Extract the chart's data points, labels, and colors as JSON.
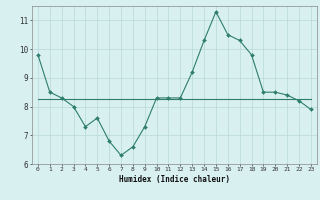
{
  "x": [
    0,
    1,
    2,
    3,
    4,
    5,
    6,
    7,
    8,
    9,
    10,
    11,
    12,
    13,
    14,
    15,
    16,
    17,
    18,
    19,
    20,
    21,
    22,
    23
  ],
  "y_curve": [
    9.8,
    8.5,
    8.3,
    8.0,
    7.3,
    7.6,
    6.8,
    6.3,
    6.6,
    7.3,
    8.3,
    8.3,
    8.3,
    9.2,
    10.3,
    11.3,
    10.5,
    10.3,
    9.8,
    8.5,
    8.5,
    8.4,
    8.2,
    7.9
  ],
  "y_flat": [
    8.25,
    8.25,
    8.25,
    8.25,
    8.25,
    8.25,
    8.25,
    8.25,
    8.25,
    8.25,
    8.25,
    8.25,
    8.25,
    8.25,
    8.25,
    8.25,
    8.25,
    8.25,
    8.25,
    8.25,
    8.25,
    8.25,
    8.25,
    8.25
  ],
  "line_color": "#2E7D6E",
  "bg_color": "#D9F0F0",
  "grid_color": "#B8D8D8",
  "xlabel": "Humidex (Indice chaleur)",
  "ylim": [
    6,
    11.5
  ],
  "xlim": [
    -0.5,
    23.5
  ],
  "yticks": [
    6,
    7,
    8,
    9,
    10,
    11
  ],
  "xticks": [
    0,
    1,
    2,
    3,
    4,
    5,
    6,
    7,
    8,
    9,
    10,
    11,
    12,
    13,
    14,
    15,
    16,
    17,
    18,
    19,
    20,
    21,
    22,
    23
  ]
}
